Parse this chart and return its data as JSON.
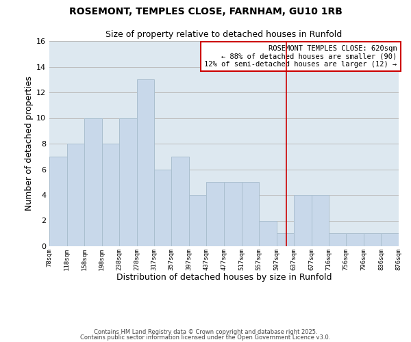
{
  "title": "ROSEMONT, TEMPLES CLOSE, FARNHAM, GU10 1RB",
  "subtitle": "Size of property relative to detached houses in Runfold",
  "xlabel": "Distribution of detached houses by size in Runfold",
  "ylabel": "Number of detached properties",
  "bar_color": "#c8d8ea",
  "bar_edge_color": "#aabfcf",
  "plot_bg_color": "#dde8f0",
  "background_color": "#ffffff",
  "grid_color": "#bbbbbb",
  "bins": [
    78,
    118,
    158,
    198,
    238,
    278,
    317,
    357,
    397,
    437,
    477,
    517,
    557,
    597,
    637,
    677,
    716,
    756,
    796,
    836,
    876
  ],
  "counts": [
    7,
    8,
    10,
    8,
    10,
    13,
    6,
    7,
    4,
    5,
    5,
    5,
    2,
    1,
    4,
    4,
    1,
    1,
    1,
    1
  ],
  "tick_labels": [
    "78sqm",
    "118sqm",
    "158sqm",
    "198sqm",
    "238sqm",
    "278sqm",
    "317sqm",
    "357sqm",
    "397sqm",
    "437sqm",
    "477sqm",
    "517sqm",
    "557sqm",
    "597sqm",
    "637sqm",
    "677sqm",
    "716sqm",
    "756sqm",
    "796sqm",
    "836sqm",
    "876sqm"
  ],
  "vline_x": 620,
  "vline_color": "#cc0000",
  "annotation_title": "ROSEMONT TEMPLES CLOSE: 620sqm",
  "annotation_line1": "← 88% of detached houses are smaller (90)",
  "annotation_line2": "12% of semi-detached houses are larger (12) →",
  "annotation_box_color": "#cc0000",
  "ylim": [
    0,
    16
  ],
  "yticks": [
    0,
    2,
    4,
    6,
    8,
    10,
    12,
    14,
    16
  ],
  "footer1": "Contains HM Land Registry data © Crown copyright and database right 2025.",
  "footer2": "Contains public sector information licensed under the Open Government Licence v3.0."
}
